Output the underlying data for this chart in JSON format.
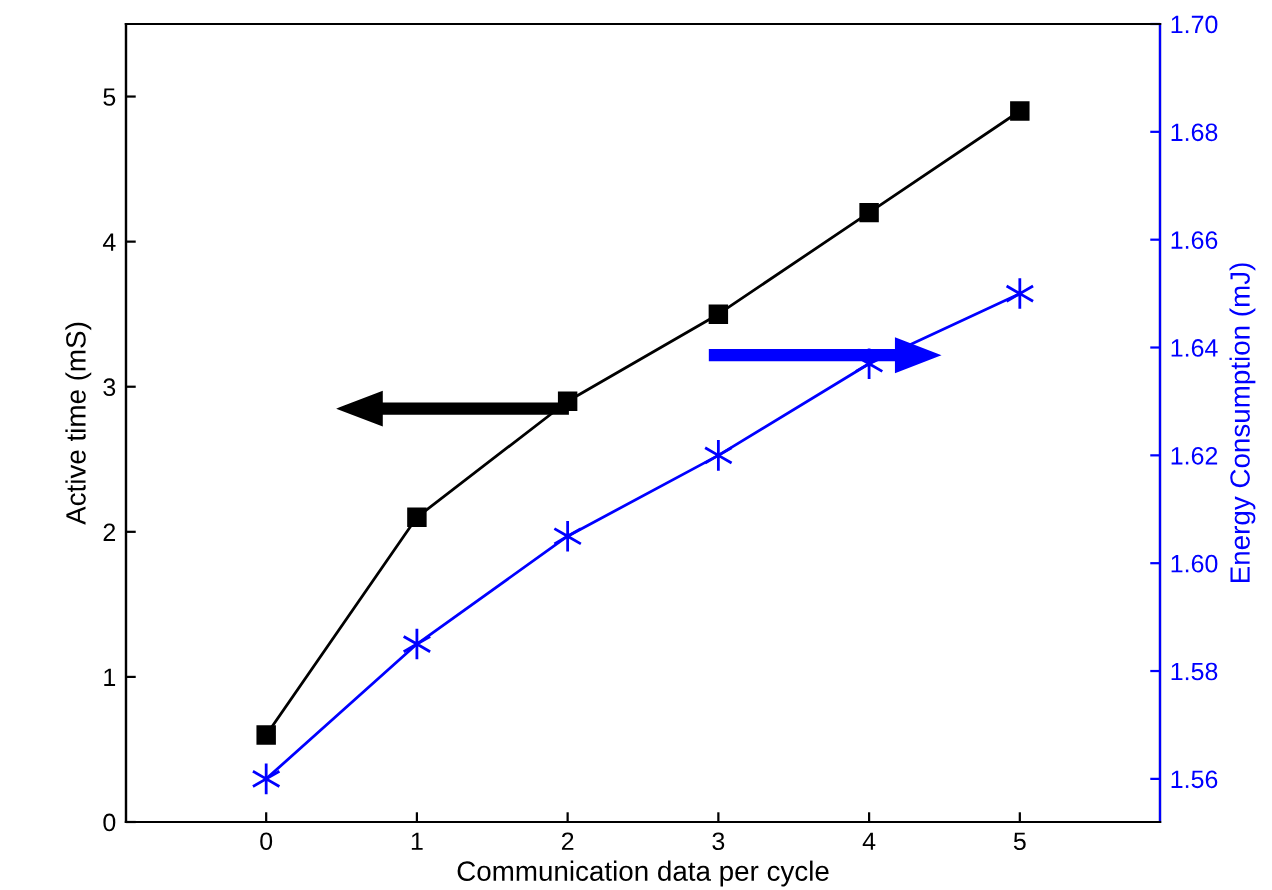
{
  "chart_data": {
    "type": "line",
    "xlabel": "Communication data per cycle",
    "ylabel": "Active time (mS)",
    "y2label": "Energy Consumption (mJ)",
    "x": [
      0,
      1,
      2,
      3,
      4,
      5
    ],
    "xlim": [
      -0.93,
      5.93
    ],
    "xticks": [
      0,
      1,
      2,
      3,
      4,
      5
    ],
    "ylim": [
      0,
      5.5
    ],
    "yticks": [
      0,
      1,
      2,
      3,
      4,
      5
    ],
    "y2lim": [
      1.552,
      1.7
    ],
    "y2ticks": [
      {
        "value": 1.56,
        "label": "1.56"
      },
      {
        "value": 1.58,
        "label": "1.58"
      },
      {
        "value": 1.6,
        "label": "1.60"
      },
      {
        "value": 1.62,
        "label": "1.62"
      },
      {
        "value": 1.64,
        "label": "1.64"
      },
      {
        "value": 1.66,
        "label": "1.66"
      },
      {
        "value": 1.68,
        "label": "1.68"
      },
      {
        "value": 1.7,
        "label": "1.70"
      }
    ],
    "grid": false,
    "legend": false,
    "series": [
      {
        "color": "#000000",
        "marker": "square",
        "values": [
          0.6,
          2.1,
          2.9,
          3.5,
          4.2,
          4.9
        ]
      },
      {
        "color": "#0000ff",
        "marker": "cross",
        "axis": "y2",
        "values": [
          1.56,
          1.585,
          1.605,
          1.62,
          1.637,
          1.65
        ]
      }
    ]
  }
}
